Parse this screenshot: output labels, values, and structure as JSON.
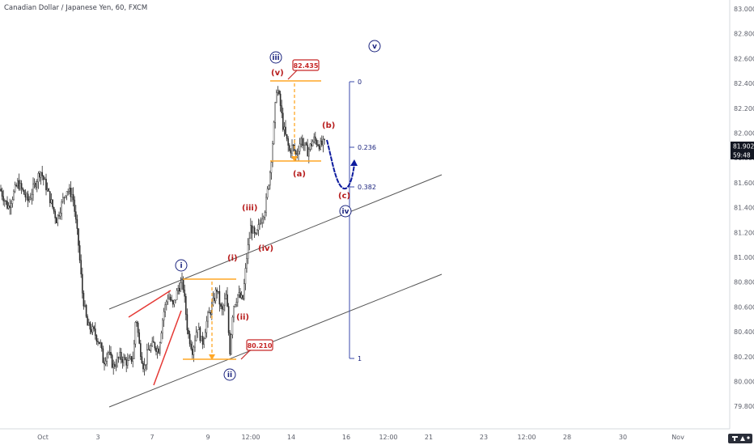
{
  "chart_data": {
    "type": "candlestick",
    "title": "Canadian Dollar / Japanese Yen, 60, FXCM",
    "symbol": "CADJPY",
    "interval": "60",
    "source": "FXCM",
    "ylim": [
      79.7,
      83.05
    ],
    "y_ticks": [
      "83.000",
      "82.800",
      "82.600",
      "82.400",
      "82.200",
      "82.000",
      "81.800",
      "81.600",
      "81.400",
      "81.200",
      "81.000",
      "80.800",
      "80.600",
      "80.400",
      "80.200",
      "80.000",
      "79.800"
    ],
    "x_ticks": [
      "Oct",
      "3",
      "7",
      "9",
      "12:00",
      "14",
      "16",
      "12:00",
      "21",
      "23",
      "12:00",
      "28",
      "30",
      "Nov"
    ],
    "last_price": "81.902",
    "countdown": "59:48",
    "price_path": [
      [
        0,
        81.55
      ],
      [
        10,
        81.4
      ],
      [
        22,
        81.6
      ],
      [
        35,
        81.45
      ],
      [
        50,
        81.7
      ],
      [
        58,
        81.55
      ],
      [
        70,
        81.3
      ],
      [
        82,
        81.55
      ],
      [
        90,
        81.5
      ],
      [
        97,
        81.1
      ],
      [
        102,
        80.7
      ],
      [
        108,
        80.45
      ],
      [
        116,
        80.4
      ],
      [
        124,
        80.3
      ],
      [
        128,
        80.15
      ],
      [
        133,
        80.25
      ],
      [
        140,
        80.12
      ],
      [
        148,
        80.2
      ],
      [
        158,
        80.15
      ],
      [
        165,
        80.2
      ],
      [
        168,
        80.55
      ],
      [
        172,
        80.3
      ],
      [
        178,
        80.1
      ],
      [
        183,
        80.25
      ],
      [
        190,
        80.3
      ],
      [
        196,
        80.25
      ],
      [
        202,
        80.55
      ],
      [
        208,
        80.7
      ],
      [
        214,
        80.6
      ],
      [
        220,
        80.75
      ],
      [
        226,
        80.8
      ],
      [
        232,
        80.4
      ],
      [
        238,
        80.25
      ],
      [
        244,
        80.45
      ],
      [
        250,
        80.3
      ],
      [
        256,
        80.5
      ],
      [
        262,
        80.6
      ],
      [
        268,
        80.75
      ],
      [
        274,
        80.55
      ],
      [
        280,
        80.7
      ],
      [
        284,
        80.23
      ],
      [
        288,
        80.6
      ],
      [
        294,
        80.7
      ],
      [
        300,
        80.65
      ],
      [
        305,
        81.0
      ],
      [
        310,
        81.25
      ],
      [
        316,
        81.15
      ],
      [
        322,
        81.3
      ],
      [
        328,
        81.4
      ],
      [
        334,
        81.7
      ],
      [
        338,
        82.0
      ],
      [
        342,
        82.38
      ],
      [
        346,
        82.25
      ],
      [
        350,
        82.05
      ],
      [
        354,
        81.95
      ],
      [
        358,
        81.85
      ],
      [
        362,
        81.9
      ],
      [
        366,
        81.82
      ],
      [
        372,
        81.95
      ],
      [
        380,
        81.85
      ],
      [
        388,
        81.95
      ],
      [
        396,
        81.9
      ],
      [
        402,
        81.92
      ]
    ],
    "annotations": {
      "waves_red": [
        "(i)",
        "(ii)",
        "(iii)",
        "(iv)",
        "(v)",
        "(a)",
        "(b)",
        "(c)"
      ],
      "waves_blue": [
        "i",
        "ii",
        "iii",
        "iv",
        "v"
      ],
      "fib_levels": [
        "0",
        "0.236",
        "0.382",
        "1"
      ],
      "price_boxes": [
        "82.435",
        "80.210"
      ]
    },
    "grid": false,
    "legend": "none"
  }
}
